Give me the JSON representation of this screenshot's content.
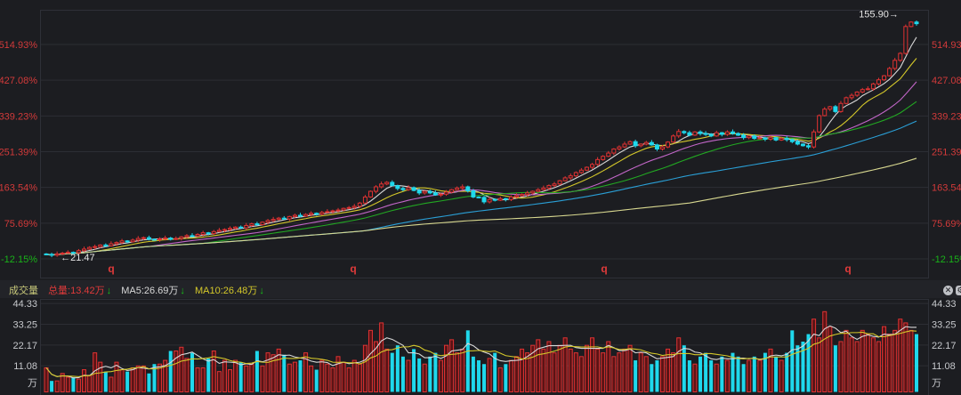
{
  "colors": {
    "background": "#1c1d21",
    "grid": "#2c2e34",
    "up": "#e03232",
    "down": "#1fd8ec",
    "axis_positive": "#d23a3a",
    "axis_negative": "#19b219",
    "volume_axis": "#c6c8cc",
    "ma": [
      "#d8d8d8",
      "#d4c82a",
      "#c266c8",
      "#22a822",
      "#2a9fd6",
      "#d8d890"
    ]
  },
  "volume_header": {
    "title": "成交量",
    "total": "总量:13.42万",
    "ma5": "MA5:26.69万",
    "ma10": "MA10:26.48万",
    "arrow": "↓"
  },
  "icons": [
    "close-circle-icon",
    "gear-icon"
  ],
  "chart_data": [
    {
      "type": "candlestick",
      "ylabel_unit": "%",
      "y_ticks": [
        "514.93%",
        "427.08%",
        "339.23%",
        "251.39%",
        "163.54%",
        "75.69%",
        "-12.15%"
      ],
      "y_tick_values": [
        514.93,
        427.08,
        339.23,
        251.39,
        163.54,
        75.69,
        -12.15
      ],
      "grid": true,
      "high_label": "155.90",
      "low_label": "21.47",
      "markers": [
        "q",
        "q",
        "q",
        "q"
      ],
      "moving_averages": [
        5,
        10,
        20,
        30,
        60,
        120
      ],
      "close_pct": [
        -1,
        -3,
        0,
        2,
        4,
        3,
        8,
        12,
        16,
        18,
        22,
        20,
        25,
        28,
        32,
        30,
        34,
        38,
        40,
        36,
        35,
        37,
        39,
        36,
        38,
        42,
        45,
        44,
        48,
        52,
        50,
        55,
        58,
        60,
        63,
        66,
        64,
        70,
        74,
        72,
        78,
        82,
        85,
        88,
        86,
        92,
        95,
        93,
        97,
        100,
        98,
        102,
        104,
        106,
        108,
        112,
        114,
        117,
        125,
        140,
        154,
        165,
        172,
        176,
        168,
        161,
        158,
        163,
        156,
        150,
        154,
        150,
        145,
        147,
        152,
        158,
        162,
        165,
        155,
        140,
        139,
        128,
        134,
        132,
        136,
        134,
        140,
        143,
        146,
        150,
        154,
        158,
        162,
        168,
        172,
        180,
        187,
        192,
        200,
        206,
        213,
        220,
        232,
        240,
        248,
        258,
        263,
        270,
        276,
        266,
        270,
        274,
        268,
        258,
        263,
        275,
        290,
        301,
        298,
        292,
        300,
        296,
        294,
        290,
        298,
        294,
        300,
        296,
        292,
        286,
        290,
        284,
        285,
        282,
        286,
        280,
        284,
        281,
        276,
        270,
        266,
        263,
        300,
        340,
        356,
        362,
        350,
        370,
        384,
        390,
        398,
        404,
        406,
        418,
        428,
        438,
        456,
        476,
        493,
        559,
        570,
        566
      ]
    },
    {
      "type": "bar",
      "title": "成交量",
      "unit": "万",
      "y_ticks": [
        "44.33",
        "33.25",
        "22.17",
        "11.08",
        "万"
      ],
      "y_tick_values": [
        44.33,
        33.25,
        22.17,
        11.08
      ],
      "moving_averages": [
        5,
        10
      ],
      "values": [
        10,
        3,
        3,
        7,
        5,
        5,
        4,
        9,
        6,
        18,
        13,
        8,
        5,
        13,
        9,
        8,
        10,
        11,
        11,
        7,
        12,
        12,
        14,
        19,
        19,
        21,
        15,
        18,
        10,
        10,
        15,
        19,
        8,
        14,
        9,
        14,
        13,
        11,
        12,
        19,
        11,
        18,
        17,
        20,
        17,
        12,
        13,
        14,
        18,
        11,
        9,
        14,
        12,
        10,
        16,
        13,
        10,
        14,
        12,
        22,
        30,
        24,
        34,
        20,
        18,
        22,
        16,
        14,
        20,
        15,
        12,
        16,
        18,
        14,
        22,
        25,
        18,
        20,
        30,
        16,
        14,
        12,
        15,
        18,
        10,
        12,
        14,
        16,
        20,
        18,
        22,
        25,
        20,
        24,
        18,
        22,
        26,
        20,
        18,
        16,
        22,
        26,
        20,
        18,
        24,
        16,
        18,
        20,
        22,
        14,
        18,
        16,
        12,
        14,
        16,
        20,
        18,
        26,
        22,
        14,
        12,
        16,
        18,
        14,
        12,
        16,
        14,
        18,
        16,
        12,
        14,
        16,
        14,
        18,
        20,
        16,
        14,
        18,
        30,
        22,
        24,
        28,
        36,
        26,
        40,
        32,
        22,
        24,
        30,
        26,
        24,
        30,
        28,
        26,
        24,
        32,
        28,
        30,
        36,
        34,
        30,
        28,
        26,
        13.42
      ]
    }
  ]
}
